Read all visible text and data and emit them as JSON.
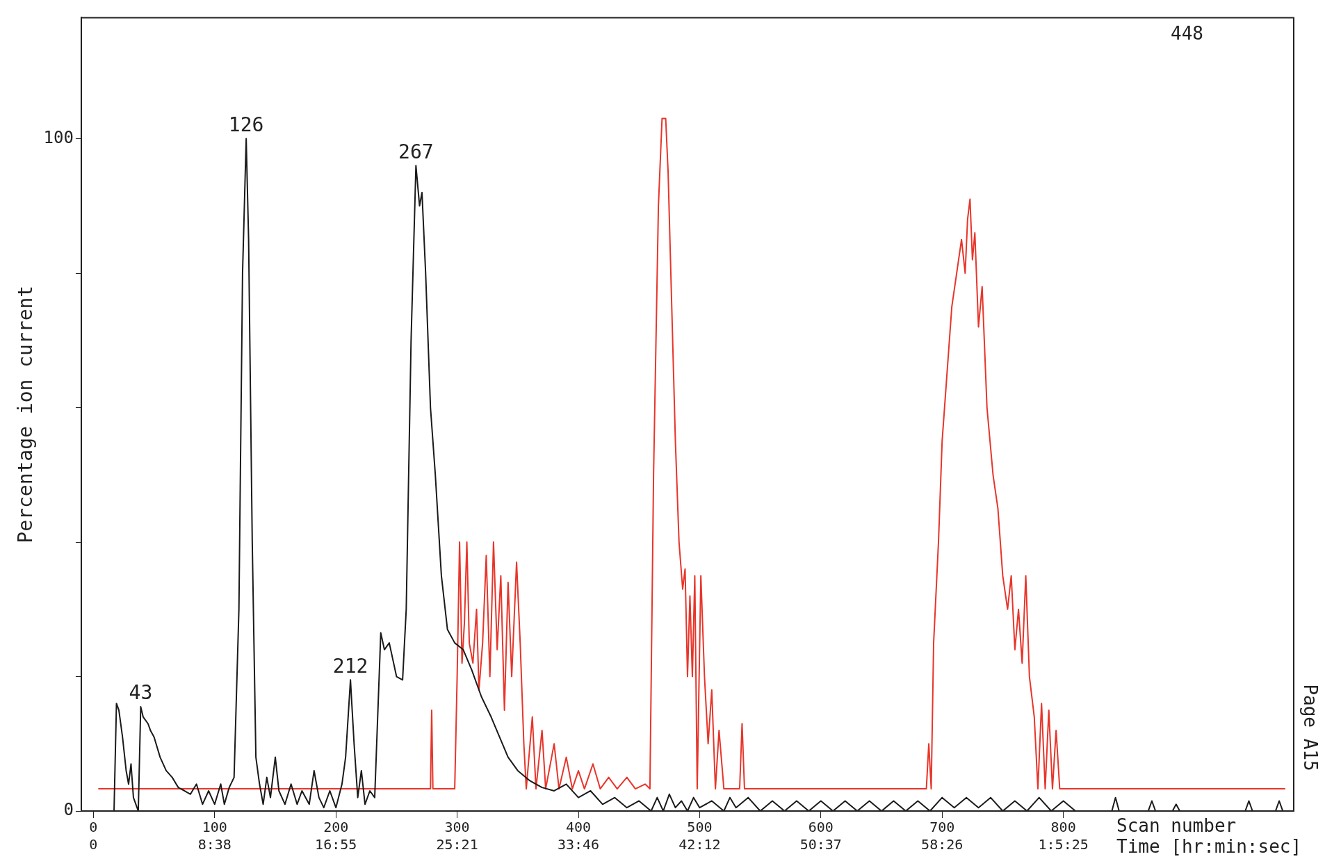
{
  "chart_data": {
    "type": "line",
    "ylabel": "Percentage ion current",
    "xlabel": "Scan number\nTime [hr:min:sec]",
    "xlim": [
      -10,
      990
    ],
    "xticks": [
      0,
      100,
      200,
      300,
      400,
      500,
      600,
      700,
      800
    ],
    "ylim": [
      0,
      118
    ],
    "yticks": [
      0,
      {
        "value": 20,
        "label": null
      },
      {
        "value": 40,
        "label": null
      },
      {
        "value": 60,
        "label": null
      },
      {
        "value": 80,
        "label": null
      },
      100
    ],
    "grid": false,
    "legend": false,
    "marker": "none",
    "line_style": "solid",
    "series": [
      {
        "color": "#1a1a1a",
        "x": [
          17,
          19,
          21,
          24,
          27,
          29,
          31,
          33,
          37,
          39,
          41,
          45,
          47,
          50,
          55,
          60,
          65,
          70,
          75,
          80,
          85,
          90,
          95,
          100,
          105,
          108,
          112,
          116,
          120,
          123,
          126,
          128,
          131,
          134,
          137,
          140,
          143,
          146,
          150,
          153,
          158,
          163,
          168,
          172,
          178,
          182,
          186,
          190,
          195,
          200,
          205,
          208,
          212,
          215,
          218,
          221,
          224,
          228,
          232,
          237,
          240,
          244,
          250,
          255,
          258,
          262,
          266,
          269,
          271,
          274,
          278,
          282,
          287,
          292,
          298,
          305,
          312,
          320,
          328,
          335,
          342,
          350,
          360,
          370,
          380,
          390,
          400,
          410,
          420,
          430,
          440,
          450,
          460,
          465,
          470,
          475,
          480,
          485,
          490,
          495,
          500,
          510,
          520,
          525,
          530,
          540,
          550,
          560,
          570,
          580,
          590,
          600,
          610,
          620,
          630,
          640,
          650,
          660,
          670,
          680,
          690,
          700,
          710,
          720,
          730,
          740,
          750,
          760,
          770,
          780,
          790,
          800,
          810,
          840,
          843,
          846,
          870,
          873,
          876,
          890,
          893,
          896,
          950,
          953,
          956,
          975,
          978,
          981
        ],
        "values": [
          0,
          16,
          15,
          11,
          6,
          4,
          7,
          2,
          0,
          15.5,
          14,
          13,
          12,
          11,
          8,
          6,
          5,
          3.5,
          3,
          2.5,
          4,
          1,
          3,
          1,
          4,
          1,
          3.5,
          5,
          30,
          80,
          100,
          85,
          40,
          8,
          4,
          1,
          5,
          2,
          8,
          3,
          1,
          4,
          1,
          3,
          1,
          6,
          2,
          0.5,
          3,
          0.5,
          4,
          8,
          19.5,
          10,
          2,
          6,
          1,
          3,
          2,
          26.5,
          24,
          25,
          20,
          19.5,
          30,
          70,
          96,
          90,
          92,
          80,
          60,
          50,
          35,
          27,
          25,
          24,
          21,
          17,
          14,
          11,
          8,
          6,
          4.5,
          3.5,
          3,
          4,
          2,
          3,
          1,
          2,
          0.5,
          1.5,
          0,
          2,
          0,
          2.5,
          0.5,
          1.5,
          0,
          2,
          0.5,
          1.5,
          0,
          2,
          0.5,
          2,
          0,
          1.5,
          0,
          1.5,
          0,
          1.5,
          0,
          1.5,
          0,
          1.5,
          0,
          1.5,
          0,
          1.5,
          0,
          2,
          0.5,
          2,
          0.5,
          2,
          0,
          1.5,
          0,
          2,
          0,
          1.5,
          0,
          0,
          2,
          0,
          0,
          1.5,
          0,
          0,
          1,
          0,
          0,
          1.5,
          0,
          0,
          1.5,
          0
        ]
      },
      {
        "color": "#e8352a",
        "x": [
          4,
          278,
          279,
          280,
          298,
          300,
          302,
          304,
          306,
          308,
          310,
          313,
          316,
          318,
          321,
          324,
          327,
          330,
          333,
          336,
          339,
          342,
          345,
          349,
          352,
          355,
          357,
          362,
          365,
          370,
          373,
          380,
          384,
          390,
          395,
          400,
          405,
          412,
          418,
          425,
          432,
          440,
          447,
          455,
          459,
          462,
          466,
          469,
          472,
          474,
          477,
          480,
          483,
          486,
          488,
          490,
          492,
          494,
          496,
          498,
          501,
          504,
          507,
          510,
          513,
          516,
          520,
          533,
          535,
          537,
          687,
          689,
          691,
          693,
          697,
          700,
          704,
          708,
          712,
          716,
          719,
          721,
          723,
          725,
          727,
          730,
          733,
          737,
          742,
          746,
          750,
          754,
          757,
          760,
          763,
          766,
          769,
          772,
          776,
          779,
          782,
          785,
          788,
          791,
          794,
          797,
          983
        ],
        "values": [
          3.3,
          3.3,
          15,
          3.3,
          3.3,
          20,
          40,
          22,
          28,
          40,
          25,
          22,
          30,
          18,
          25,
          38,
          20,
          40,
          24,
          35,
          15,
          34,
          20,
          37,
          25,
          10,
          3.3,
          14,
          3.3,
          12,
          3.3,
          10,
          3.3,
          8,
          3.3,
          6,
          3.3,
          7,
          3.3,
          5,
          3.3,
          5,
          3.3,
          4,
          3.3,
          50,
          90,
          103,
          103,
          95,
          75,
          55,
          40,
          33,
          36,
          20,
          32,
          20,
          35,
          3.3,
          35,
          20,
          10,
          18,
          3.3,
          12,
          3.3,
          3.3,
          13,
          3.3,
          3.3,
          10,
          3.3,
          25,
          40,
          55,
          65,
          75,
          80,
          85,
          80,
          88,
          91,
          82,
          86,
          72,
          78,
          60,
          50,
          45,
          35,
          30,
          35,
          24,
          30,
          22,
          35,
          20,
          14,
          3.3,
          16,
          3.3,
          15,
          3.3,
          12,
          3.3,
          3.3
        ]
      }
    ],
    "annotations": [
      "0",
      "8:38",
      "16:55",
      "25:21",
      "33:46",
      "42:12",
      "50:37",
      "58:26",
      "1:5:25",
      {
        "text": "43",
        "x": 39,
        "y": 15.5
      },
      {
        "text": "126",
        "x": 126,
        "y": 100
      },
      {
        "text": "212",
        "x": 212,
        "y": 19.5
      },
      {
        "text": "267",
        "x": 266,
        "y": 96
      },
      "448",
      "Page A15"
    ]
  }
}
